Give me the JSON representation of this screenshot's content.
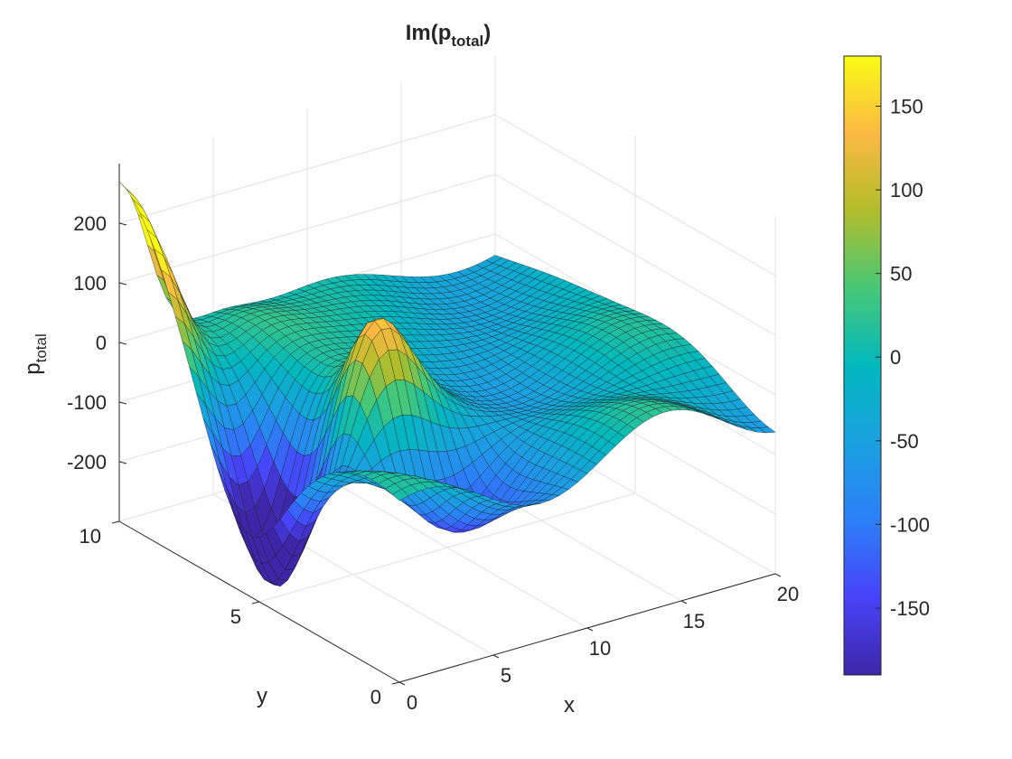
{
  "chart_data": {
    "type": "surface",
    "title_main": "Im(p",
    "title_sub": "total",
    "title_close": ")",
    "xlabel": "x",
    "ylabel": "y",
    "zlabel_main": "p",
    "zlabel_sub": "total",
    "xlim": [
      0,
      20
    ],
    "ylim": [
      0,
      10
    ],
    "zlim": [
      -300,
      300
    ],
    "x_ticks": [
      0,
      5,
      10,
      15,
      20
    ],
    "x_tick_labels": [
      "0",
      "5",
      "10",
      "15",
      "20"
    ],
    "y_ticks": [
      0,
      5,
      10
    ],
    "y_tick_labels": [
      "0",
      "5",
      "10"
    ],
    "z_ticks": [
      -200,
      -100,
      0,
      100,
      200
    ],
    "z_tick_labels": [
      "-200",
      "-100",
      "0",
      "100",
      "200"
    ],
    "colorbar": {
      "limits": [
        -190,
        180
      ],
      "ticks": [
        -150,
        -100,
        -50,
        0,
        50,
        100,
        150
      ],
      "tick_labels": [
        "-150",
        "-100",
        "-50",
        "0",
        "50",
        "100",
        "150"
      ],
      "colormap": "parula"
    },
    "grid": true,
    "grid_resolution": [
      41,
      41
    ]
  },
  "colors": {
    "axis": "#262626",
    "grid": "#e0e0e0",
    "edge": "#1a1a1a"
  }
}
